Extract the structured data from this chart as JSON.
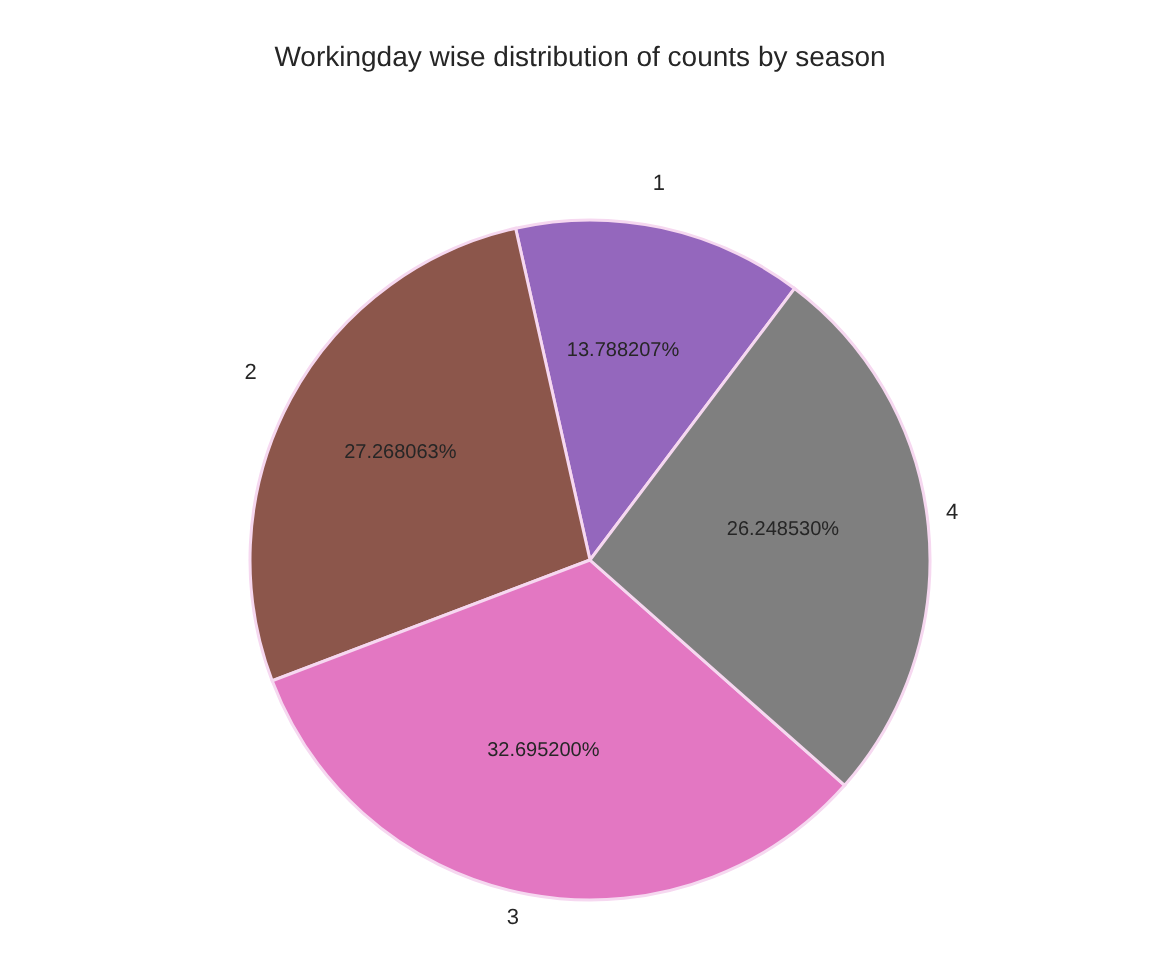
{
  "chart_data": {
    "type": "pie",
    "title": "Workingday wise distribution of counts by season",
    "categories": [
      "1",
      "2",
      "3",
      "4"
    ],
    "values": [
      13.788207,
      27.268063,
      32.6952,
      26.24853
    ],
    "value_labels": [
      "13.788207%",
      "27.268063%",
      "32.695200%",
      "26.248530%"
    ],
    "colors": [
      "#9467bd",
      "#8c564b",
      "#e377c2",
      "#7f7f7f"
    ],
    "legend": false
  }
}
